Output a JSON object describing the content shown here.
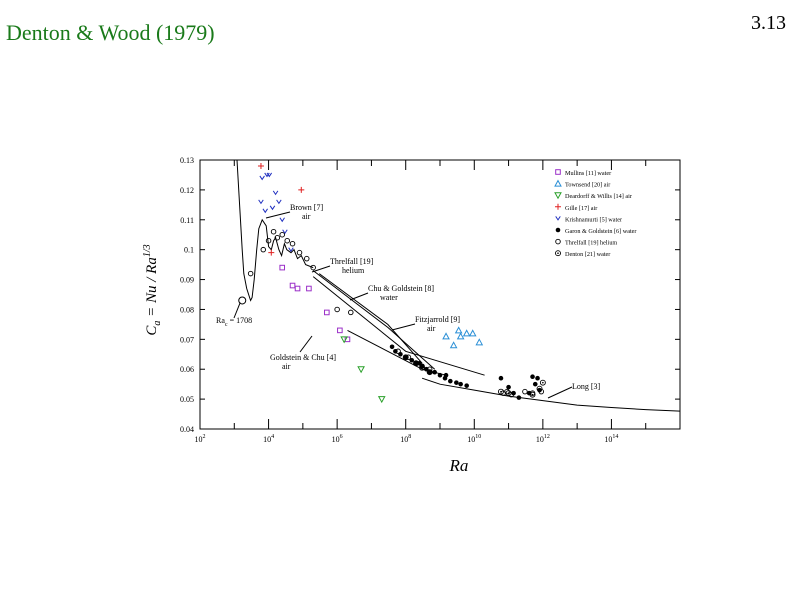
{
  "slide": {
    "title": "Denton & Wood (1979)",
    "number": "3.13"
  },
  "chart_data": {
    "type": "scatter",
    "xlabel": "Ra",
    "ylabel": "C_a = Nu / Ra^1/3",
    "x_scale": "log",
    "xlim": [
      100,
      1e+16
    ],
    "ylim": [
      0.04,
      0.13
    ],
    "x_ticks": [
      {
        "value": 100,
        "label": "10^2"
      },
      {
        "value": 10000.0,
        "label": "10^4"
      },
      {
        "value": 1000000.0,
        "label": "10^6"
      },
      {
        "value": 100000000.0,
        "label": "10^8"
      },
      {
        "value": 10000000000.0,
        "label": "10^10"
      },
      {
        "value": 1000000000000.0,
        "label": "10^12"
      },
      {
        "value": 100000000000000.0,
        "label": "10^14"
      }
    ],
    "y_ticks": [
      "0.04",
      "0.05",
      "0.06",
      "0.07",
      "0.08",
      "0.09",
      "0.1",
      "0.11",
      "0.12",
      "0.13"
    ],
    "series": [
      {
        "name": "Mullins [11] water",
        "marker": "square",
        "color": "#9b30c8",
        "points": [
          [
            25000,
            0.094
          ],
          [
            50000,
            0.088
          ],
          [
            70000,
            0.087
          ],
          [
            150000,
            0.087
          ],
          [
            500000,
            0.079
          ],
          [
            1200000,
            0.073
          ],
          [
            2000000,
            0.07
          ]
        ]
      },
      {
        "name": "Townsend [20] air",
        "marker": "triangle",
        "color": "#2a8fd6",
        "points": [
          [
            1500000000.0,
            0.071
          ],
          [
            2500000000.0,
            0.068
          ],
          [
            3500000000.0,
            0.073
          ],
          [
            4000000000.0,
            0.071
          ],
          [
            6000000000.0,
            0.072
          ],
          [
            9000000000.0,
            0.072
          ],
          [
            14000000000.0,
            0.069
          ]
        ]
      },
      {
        "name": "Deardorff & Willis [14] air",
        "marker": "triangle-down",
        "color": "#2aa02a",
        "points": [
          [
            1600000,
            0.07
          ],
          [
            5000000,
            0.06
          ],
          [
            20000000.0,
            0.05
          ]
        ]
      },
      {
        "name": "Gille [17] air",
        "marker": "plus",
        "color": "#e02020",
        "points": [
          [
            6000,
            0.128
          ],
          [
            12000,
            0.099
          ],
          [
            90000,
            0.12
          ]
        ]
      },
      {
        "name": "Krishnamurti [5] water",
        "marker": "v",
        "color": "#2030c0",
        "points": [
          [
            6500,
            0.124
          ],
          [
            9000,
            0.125
          ],
          [
            10500,
            0.125
          ],
          [
            6000,
            0.116
          ],
          [
            8000,
            0.113
          ],
          [
            13000,
            0.114
          ],
          [
            16000,
            0.119
          ],
          [
            20000,
            0.116
          ],
          [
            25000,
            0.11
          ],
          [
            30000,
            0.106
          ],
          [
            45000,
            0.1
          ]
        ]
      },
      {
        "name": "Garon & Goldstein [6] water",
        "marker": "dot",
        "color": "#000000",
        "points": [
          [
            40000000.0,
            0.0675
          ],
          [
            50000000.0,
            0.066
          ],
          [
            70000000.0,
            0.065
          ],
          [
            100000000.0,
            0.064
          ],
          [
            150000000.0,
            0.063
          ],
          [
            200000000.0,
            0.062
          ],
          [
            250000000.0,
            0.062
          ],
          [
            300000000.0,
            0.061
          ],
          [
            400000000.0,
            0.06
          ],
          [
            500000000.0,
            0.059
          ],
          [
            700000000.0,
            0.059
          ],
          [
            1000000000.0,
            0.058
          ],
          [
            1400000000.0,
            0.057
          ],
          [
            2000000000.0,
            0.056
          ],
          [
            3000000000.0,
            0.0555
          ],
          [
            4000000000.0,
            0.055
          ],
          [
            6000000000.0,
            0.0545
          ],
          [
            1500000000.0,
            0.058
          ],
          [
            60000000000.0,
            0.057
          ],
          [
            100000000000.0,
            0.054
          ],
          [
            140000000000.0,
            0.052
          ],
          [
            200000000000.0,
            0.0505
          ],
          [
            400000000000.0,
            0.052
          ],
          [
            500000000000.0,
            0.0575
          ],
          [
            600000000000.0,
            0.055
          ],
          [
            700000000000.0,
            0.057
          ],
          [
            800000000000.0,
            0.053
          ]
        ]
      },
      {
        "name": "Threlfall [19] helium",
        "marker": "circle",
        "color": "#000000",
        "points": [
          [
            3000,
            0.092
          ],
          [
            7000,
            0.1
          ],
          [
            10000,
            0.103
          ],
          [
            14000,
            0.106
          ],
          [
            18000,
            0.104
          ],
          [
            25000,
            0.105
          ],
          [
            35000,
            0.103
          ],
          [
            50000,
            0.102
          ],
          [
            80000,
            0.099
          ],
          [
            130000,
            0.097
          ],
          [
            200000,
            0.094
          ],
          [
            1000000,
            0.08
          ],
          [
            2500000,
            0.079
          ],
          [
            60000000.0,
            0.066
          ],
          [
            120000000.0,
            0.064
          ],
          [
            200000000.0,
            0.062
          ],
          [
            300000000.0,
            0.061
          ],
          [
            500000000.0,
            0.06
          ],
          [
            70000000000.0,
            0.052
          ],
          [
            90000000000.0,
            0.0525
          ],
          [
            120000000000.0,
            0.0515
          ],
          [
            300000000000.0,
            0.0525
          ],
          [
            500000000000.0,
            0.052
          ],
          [
            900000000000.0,
            0.0525
          ]
        ]
      },
      {
        "name": "Denton [21] water",
        "marker": "circle-dot",
        "color": "#000000",
        "points": [
          [
            100000000.0,
            0.064
          ],
          [
            200000000.0,
            0.062
          ],
          [
            300000000.0,
            0.0605
          ],
          [
            500000000.0,
            0.059
          ],
          [
            60000000000.0,
            0.0525
          ],
          [
            100000000000.0,
            0.052
          ],
          [
            500000000000.0,
            0.0515
          ],
          [
            800000000000.0,
            0.0535
          ],
          [
            1000000000000.0,
            0.0555
          ]
        ]
      }
    ],
    "reference_curves": [
      {
        "label": "Brown [7] air",
        "points": [
          [
            1200,
            0.13
          ],
          [
            1700,
            0.1
          ],
          [
            1900,
            0.092
          ],
          [
            2300,
            0.087
          ],
          [
            2800,
            0.084
          ],
          [
            3000,
            0.083
          ],
          [
            3300,
            0.084
          ],
          [
            3800,
            0.09
          ],
          [
            4500,
            0.1
          ],
          [
            5200,
            0.107
          ],
          [
            6500,
            0.11
          ],
          [
            8500,
            0.108
          ],
          [
            10000,
            0.101
          ],
          [
            12000,
            0.1
          ],
          [
            14000,
            0.103
          ],
          [
            16000,
            0.104
          ],
          [
            20000,
            0.1
          ],
          [
            24000,
            0.098
          ],
          [
            29000,
            0.102
          ],
          [
            34000,
            0.1
          ],
          [
            45000,
            0.099
          ],
          [
            55000,
            0.1
          ],
          [
            70000,
            0.097
          ],
          [
            90000,
            0.098
          ],
          [
            120000,
            0.095
          ],
          [
            200000,
            0.094
          ]
        ]
      },
      {
        "label": "Threlfall [19] helium",
        "points": [
          [
            300000,
            0.092
          ],
          [
            30000000.0,
            0.075
          ],
          [
            300000000.0,
            0.062
          ]
        ]
      },
      {
        "label": "Chu & Goldstein [8] water",
        "points": [
          [
            200000,
            0.093
          ],
          [
            30000000.0,
            0.074
          ],
          [
            700000000.0,
            0.06
          ]
        ]
      },
      {
        "label": "Fitzjarrold [9] air",
        "points": [
          [
            200000,
            0.091
          ],
          [
            100000000.0,
            0.066
          ],
          [
            20000000000.0,
            0.058
          ]
        ]
      },
      {
        "label": "Goldstein & Chu [4] air",
        "points": [
          [
            2000000,
            0.073
          ],
          [
            300000000.0,
            0.06
          ],
          [
            1500000000.0,
            0.058
          ]
        ]
      },
      {
        "label": "Long [3]",
        "points": [
          [
            300000000.0,
            0.057
          ],
          [
            1000000000.0,
            0.055
          ],
          [
            10000000000.0,
            0.053
          ],
          [
            100000000000.0,
            0.051
          ],
          [
            1000000000000.0,
            0.0495
          ],
          [
            10000000000000.0,
            0.048
          ],
          [
            100000000000000.0,
            0.0472
          ],
          [
            1000000000000000.0,
            0.0465
          ],
          [
            1e+16,
            0.046
          ]
        ]
      }
    ],
    "annotations": [
      {
        "text": "Ra_c = 1708",
        "x": 1708,
        "y": 0.083
      }
    ],
    "legend": "top-right",
    "grid": false
  }
}
